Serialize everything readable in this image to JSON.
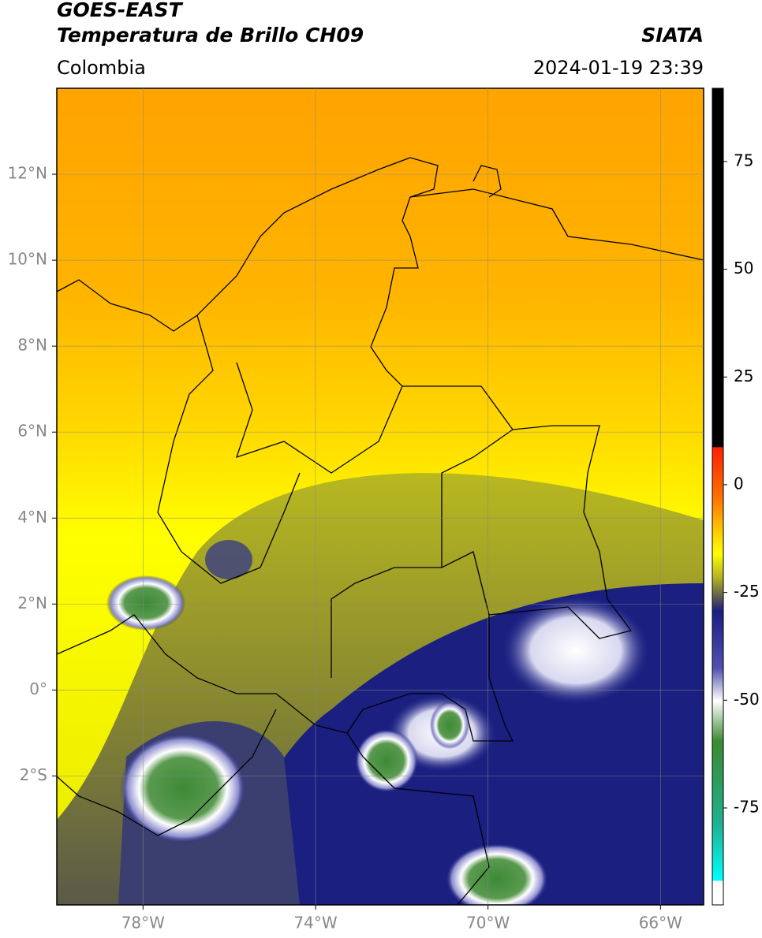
{
  "map": {
    "title": "GOES-EAST",
    "subtitle": "Temperatura de Brillo CH09",
    "source": "SIATA",
    "region": "Colombia",
    "datetime": "2024-01-19 23:39",
    "xlim": [
      -80,
      -65
    ],
    "ylim": [
      -5,
      14
    ],
    "xticks": [
      {
        "value": -78,
        "label": "78°W"
      },
      {
        "value": -74,
        "label": "74°W"
      },
      {
        "value": -70,
        "label": "70°W"
      },
      {
        "value": -66,
        "label": "66°W"
      }
    ],
    "yticks": [
      {
        "value": 12,
        "label": "12°N"
      },
      {
        "value": 10,
        "label": "10°N"
      },
      {
        "value": 8,
        "label": "8°N"
      },
      {
        "value": 6,
        "label": "6°N"
      },
      {
        "value": 4,
        "label": "4°N"
      },
      {
        "value": 2,
        "label": "2°N"
      },
      {
        "value": 0,
        "label": "0°"
      },
      {
        "value": -2,
        "label": "2°S"
      }
    ],
    "grid": true,
    "colorbar": {
      "lim": [
        -97.5,
        92
      ],
      "ticks": [
        75,
        50,
        25,
        0,
        -25,
        -50,
        -75
      ]
    }
  }
}
